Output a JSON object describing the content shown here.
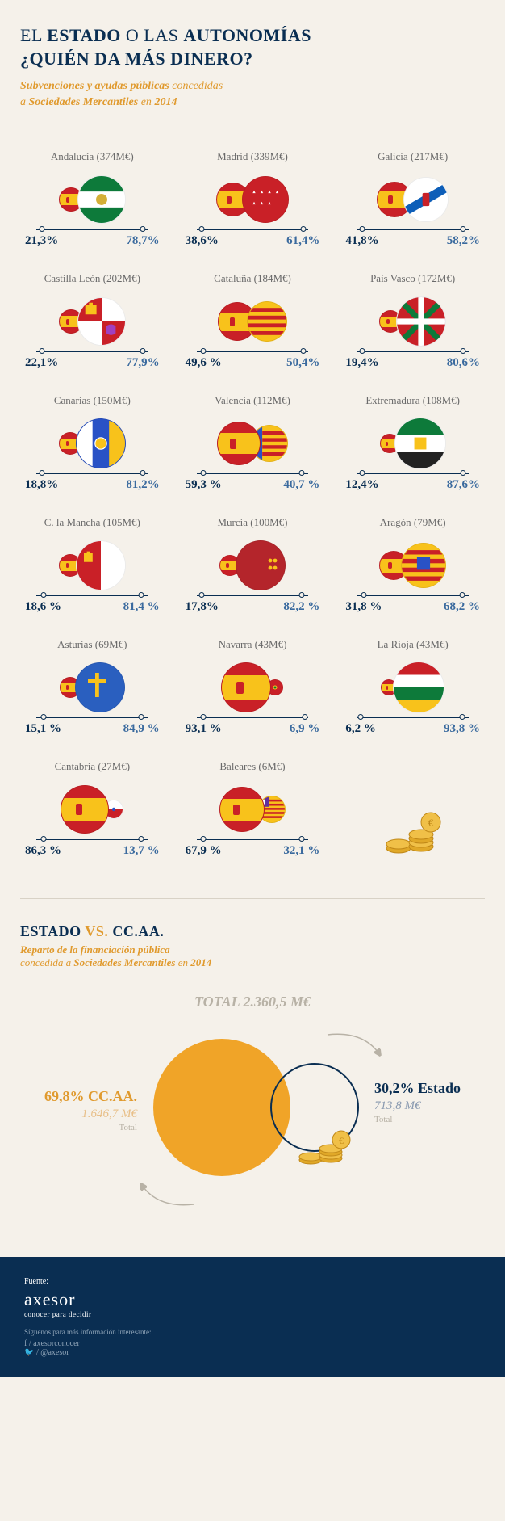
{
  "title_line1_a": "EL ",
  "title_line1_b": "ESTADO",
  "title_line1_c": " O LAS ",
  "title_line1_d": "AUTONOMÍAS",
  "title_line2": "¿QUIÉN DA MÁS DINERO?",
  "subtitle_a": "Subvenciones y ayudas públicas ",
  "subtitle_b": "concedidas",
  "subtitle_c": "a ",
  "subtitle_d": "Sociedades Mercantiles",
  "subtitle_e": " en ",
  "subtitle_f": "2014",
  "regions": [
    {
      "name": "Andalucía",
      "amount": "374M€",
      "left": "21,3%",
      "right": "78,7%",
      "ls": 30,
      "rs": 60,
      "rcolor": "#ffffff",
      "rflag": "andalucia"
    },
    {
      "name": "Madrid",
      "amount": "339M€",
      "left": "38,6%",
      "right": "61,4%",
      "ls": 42,
      "rs": 58,
      "rcolor": "#c92027",
      "rflag": "madrid"
    },
    {
      "name": "Galicia",
      "amount": "217M€",
      "left": "41,8%",
      "right": "58,2%",
      "ls": 44,
      "rs": 56,
      "rcolor": "#ffffff",
      "rflag": "galicia"
    },
    {
      "name": "Castilla León",
      "amount": "202M€",
      "left": "22,1%",
      "right": "77,9%",
      "ls": 30,
      "rs": 60,
      "rcolor": "#ffffff",
      "rflag": "castillaleon"
    },
    {
      "name": "Cataluña",
      "amount": "184M€",
      "left": "49,6 %",
      "right": "50,4%",
      "ls": 48,
      "rs": 50,
      "rcolor": "#f8c21b",
      "rflag": "catalunya"
    },
    {
      "name": "País Vasco",
      "amount": "172M€",
      "left": "19,4%",
      "right": "80,6%",
      "ls": 28,
      "rs": 62,
      "rcolor": "#ffffff",
      "rflag": "paisvasco"
    },
    {
      "name": "Canarias",
      "amount": "150M€",
      "left": "18,8%",
      "right": "81,2%",
      "ls": 28,
      "rs": 62,
      "rcolor": "#2952c6",
      "rflag": "canarias"
    },
    {
      "name": "Valencia",
      "amount": "112M€",
      "left": "59,3 %",
      "right": "40,7 %",
      "ls": 54,
      "rs": 46,
      "rcolor": "#f8c21b",
      "rflag": "valencia"
    },
    {
      "name": "Extremadura",
      "amount": "108M€",
      "left": "12,4%",
      "right": "87,6%",
      "ls": 24,
      "rs": 64,
      "rcolor": "#ffffff",
      "rflag": "extremadura"
    },
    {
      "name": "C. la Mancha",
      "amount": "105M€",
      "left": "18,6 %",
      "right": "81,4 %",
      "ls": 28,
      "rs": 62,
      "rcolor": "#ffffff",
      "rflag": "clamancha"
    },
    {
      "name": "Murcia",
      "amount": "100M€",
      "left": "17,8%",
      "right": "82,2 %",
      "ls": 26,
      "rs": 62,
      "rcolor": "#b4252b",
      "rflag": "murcia"
    },
    {
      "name": "Aragón",
      "amount": "79M€",
      "left": "31,8 %",
      "right": "68,2 %",
      "ls": 36,
      "rs": 56,
      "rcolor": "#f8c21b",
      "rflag": "aragon"
    },
    {
      "name": "Asturias",
      "amount": "69M€",
      "left": "15,1 %",
      "right": "84,9 %",
      "ls": 26,
      "rs": 62,
      "rcolor": "#2a5fbf",
      "rflag": "asturias"
    },
    {
      "name": "Navarra",
      "amount": "43M€",
      "left": "93,1 %",
      "right": "6,9 %",
      "ls": 62,
      "rs": 20,
      "rcolor": "#c92027",
      "rflag": "navarra"
    },
    {
      "name": "La Rioja",
      "amount": "43M€",
      "left": "6,2 %",
      "right": "93,8 %",
      "ls": 20,
      "rs": 64,
      "rcolor": "#ffffff",
      "rflag": "larioja"
    },
    {
      "name": "Cantabria",
      "amount": "27M€",
      "left": "86,3 %",
      "right": "13,7 %",
      "ls": 60,
      "rs": 24,
      "rcolor": "#ffffff",
      "rflag": "cantabria"
    },
    {
      "name": "Baleares",
      "amount": "6M€",
      "left": "67,9 %",
      "right": "32,1 %",
      "ls": 56,
      "rs": 34,
      "rcolor": "#f8c21b",
      "rflag": "baleares"
    }
  ],
  "section2_title_a": "ESTADO",
  "section2_title_b": " VS. ",
  "section2_title_c": "CC.AA.",
  "section2_sub_a": "Reparto de la financiación pública",
  "section2_sub_b": "concedida a ",
  "section2_sub_c": "Sociedades Mercantiles",
  "section2_sub_d": " en ",
  "section2_sub_e": "2014",
  "total_label": "TOTAL 2.360,5 M€",
  "ccaa_pct": "69,8% CC.AA.",
  "ccaa_amount": "1.646,7 M€",
  "ccaa_total": "Total",
  "estado_pct": "30,2% Estado",
  "estado_amount": "713,8 M€",
  "estado_total": "Total",
  "footer": {
    "fuente": "Fuente:",
    "brand": "axesor",
    "tagline": "conocer para decidir",
    "follow": "Síguenos para más información interesante:",
    "fb": "/ axesorconocer",
    "tw": "/ @axesor"
  },
  "colors": {
    "bg": "#f5f1ea",
    "navy": "#0a2e52",
    "orange": "#e09a2e",
    "orange_fill": "#f0a428",
    "grey": "#b8b2a6"
  }
}
